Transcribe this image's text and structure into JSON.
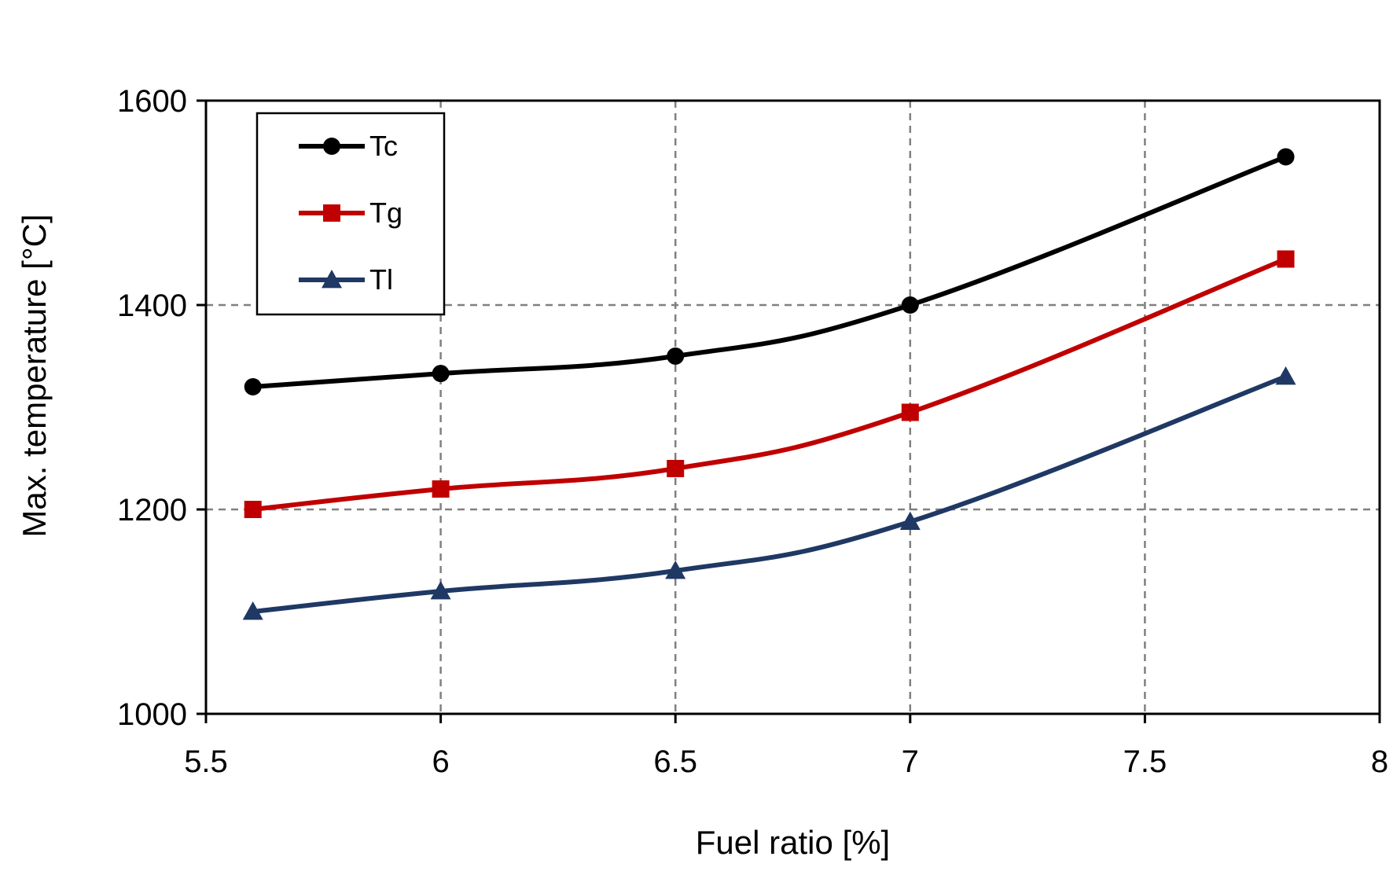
{
  "chart_data": {
    "type": "line",
    "title": "",
    "xlabel": "Fuel ratio [%]",
    "ylabel": "Max. temperature  [°C]",
    "xlim": [
      5.5,
      8
    ],
    "ylim": [
      1000,
      1600
    ],
    "xticks": [
      5.5,
      6,
      6.5,
      7,
      7.5,
      8
    ],
    "yticks": [
      1000,
      1200,
      1400,
      1600
    ],
    "xtick_labels": [
      "5.5",
      "6",
      "6.5",
      "7",
      "7.5",
      "8"
    ],
    "ytick_labels": [
      "1000",
      "1200",
      "1400",
      "1600"
    ],
    "grid": true,
    "legend_position": "top-left",
    "x": [
      5.6,
      6.0,
      6.5,
      7.0,
      7.8
    ],
    "series": [
      {
        "name": "Tc",
        "color": "#000000",
        "marker": "circle",
        "values": [
          1320,
          1333,
          1350,
          1400,
          1545
        ]
      },
      {
        "name": "Tg",
        "color": "#c00000",
        "marker": "square",
        "values": [
          1200,
          1220,
          1240,
          1295,
          1445
        ]
      },
      {
        "name": "Tl",
        "color": "#1f3864",
        "marker": "triangle",
        "values": [
          1100,
          1120,
          1140,
          1188,
          1330
        ]
      }
    ]
  }
}
